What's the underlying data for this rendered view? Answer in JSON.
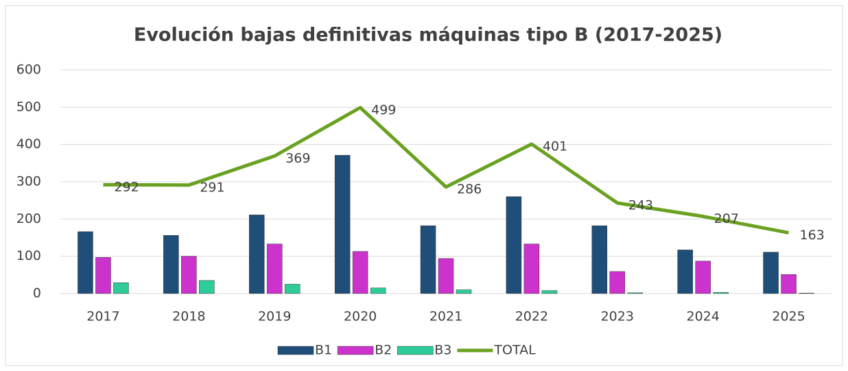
{
  "chart_data": {
    "type": "bar_line",
    "title": "Evolución bajas definitivas máquinas tipo B (2017-2025)",
    "categories": [
      "2017",
      "2018",
      "2019",
      "2020",
      "2021",
      "2022",
      "2023",
      "2024",
      "2025"
    ],
    "series": [
      {
        "name": "B1",
        "color": "#1f4e79",
        "type": "bar",
        "values": [
          166,
          156,
          211,
          371,
          182,
          260,
          182,
          117,
          111
        ]
      },
      {
        "name": "B2",
        "color": "#cc33cc",
        "type": "bar",
        "values": [
          97,
          100,
          133,
          113,
          94,
          133,
          59,
          87,
          51
        ]
      },
      {
        "name": "B3",
        "color": "#2ecc9a",
        "type": "bar",
        "values": [
          29,
          35,
          25,
          15,
          10,
          8,
          2,
          3,
          1
        ]
      },
      {
        "name": "TOTAL",
        "color": "#6aa121",
        "type": "line",
        "values": [
          292,
          291,
          369,
          499,
          286,
          401,
          243,
          207,
          163
        ]
      }
    ],
    "ylim": [
      0,
      600
    ],
    "yticks": [
      0,
      100,
      200,
      300,
      400,
      500,
      600
    ],
    "grid": true,
    "legend": "bottom"
  }
}
